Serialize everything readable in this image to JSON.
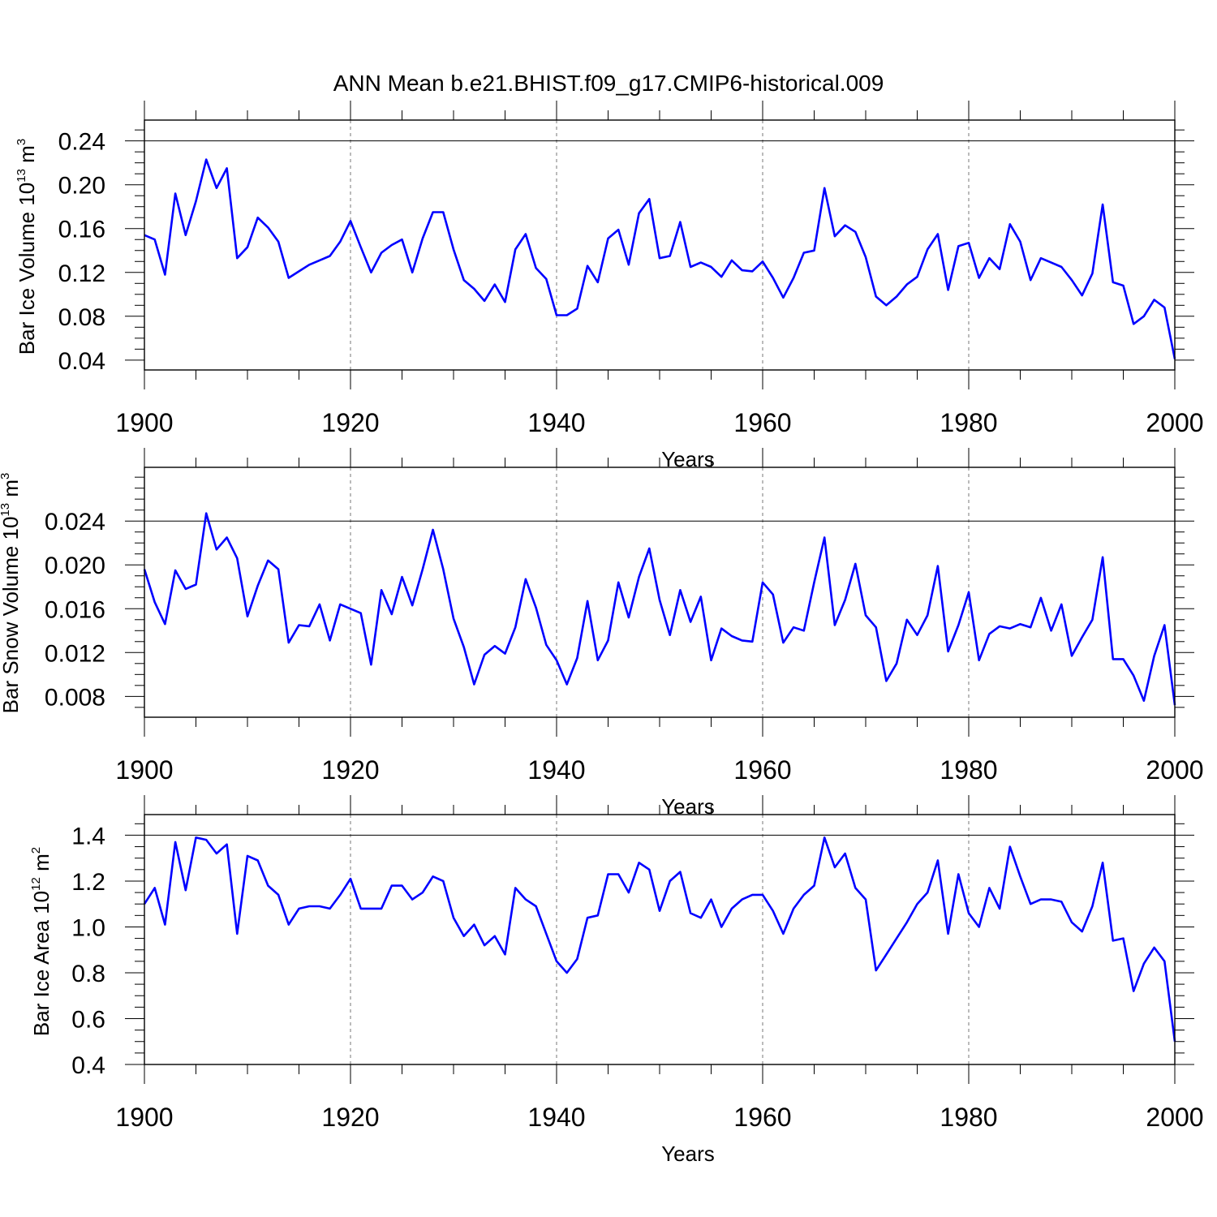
{
  "title": "ANN Mean b.e21.BHIST.f09_g17.CMIP6-historical.009",
  "colors": {
    "series": "#0000ff",
    "axis": "#000000",
    "grid": "#777777"
  },
  "chart_data": [
    {
      "type": "line",
      "title": "",
      "ylabel": "Bar Ice Volume 10",
      "ylabel_exponent": "13",
      "ylabel_unit": "m",
      "ylabel_unit_exponent": "3",
      "xlabel": "Years",
      "xlim": [
        1900,
        2000
      ],
      "ylim": [
        0.031,
        0.259
      ],
      "x_ticks": [
        "1900",
        "1920",
        "1940",
        "1960",
        "1980",
        "2000"
      ],
      "y_ticks": [
        "0.04",
        "0.08",
        "0.12",
        "0.16",
        "0.20",
        "0.24"
      ],
      "grid": "dashed vertical lines at 1920, 1940, 1960, 1980",
      "x_start": 1900,
      "series": [
        {
          "values": [
            0.154,
            0.15,
            0.118,
            0.192,
            0.154,
            0.185,
            0.223,
            0.197,
            0.215,
            0.133,
            0.143,
            0.17,
            0.161,
            0.148,
            0.115,
            0.121,
            0.127,
            0.131,
            0.135,
            0.148,
            0.167,
            0.143,
            0.12,
            0.138,
            0.145,
            0.15,
            0.12,
            0.151,
            0.175,
            0.175,
            0.141,
            0.113,
            0.105,
            0.094,
            0.109,
            0.093,
            0.141,
            0.155,
            0.124,
            0.114,
            0.081,
            0.081,
            0.087,
            0.126,
            0.111,
            0.151,
            0.159,
            0.127,
            0.174,
            0.187,
            0.133,
            0.135,
            0.166,
            0.125,
            0.129,
            0.125,
            0.116,
            0.131,
            0.122,
            0.121,
            0.13,
            0.115,
            0.097,
            0.115,
            0.138,
            0.14,
            0.197,
            0.153,
            0.163,
            0.157,
            0.134,
            0.098,
            0.09,
            0.098,
            0.109,
            0.116,
            0.141,
            0.155,
            0.104,
            0.144,
            0.147,
            0.115,
            0.133,
            0.123,
            0.164,
            0.148,
            0.113,
            0.133,
            0.129,
            0.125,
            0.113,
            0.099,
            0.119,
            0.182,
            0.111,
            0.108,
            0.073,
            0.08,
            0.095,
            0.088,
            0.041
          ]
        }
      ]
    },
    {
      "type": "line",
      "title": "",
      "ylabel": "Bar Snow Volume 10",
      "ylabel_exponent": "13",
      "ylabel_unit": "m",
      "ylabel_unit_exponent": "3",
      "xlabel": "Years",
      "xlim": [
        1900,
        2000
      ],
      "ylim": [
        0.0061,
        0.0289
      ],
      "x_ticks": [
        "1900",
        "1920",
        "1940",
        "1960",
        "1980",
        "2000"
      ],
      "y_ticks": [
        "0.008",
        "0.012",
        "0.016",
        "0.020",
        "0.024"
      ],
      "grid": "dashed vertical lines at 1920, 1940, 1960, 1980",
      "x_start": 1900,
      "series": [
        {
          "values": [
            0.0196,
            0.0166,
            0.0146,
            0.0195,
            0.0178,
            0.0182,
            0.0247,
            0.0214,
            0.0225,
            0.0206,
            0.0153,
            0.0181,
            0.0204,
            0.0196,
            0.0129,
            0.0145,
            0.0144,
            0.0164,
            0.0131,
            0.0164,
            0.016,
            0.0156,
            0.0109,
            0.0177,
            0.0155,
            0.0189,
            0.0163,
            0.0196,
            0.0232,
            0.0196,
            0.0151,
            0.0125,
            0.0091,
            0.0118,
            0.0126,
            0.0119,
            0.0143,
            0.0187,
            0.0161,
            0.0127,
            0.0113,
            0.0091,
            0.0115,
            0.0167,
            0.0113,
            0.0131,
            0.0184,
            0.0152,
            0.0189,
            0.0215,
            0.0168,
            0.0136,
            0.0177,
            0.0148,
            0.0171,
            0.0113,
            0.0142,
            0.0135,
            0.0131,
            0.013,
            0.0184,
            0.0173,
            0.0129,
            0.0143,
            0.014,
            0.0184,
            0.0225,
            0.0145,
            0.0168,
            0.0201,
            0.0154,
            0.0143,
            0.0094,
            0.011,
            0.015,
            0.0136,
            0.0154,
            0.0199,
            0.0121,
            0.0145,
            0.0175,
            0.0113,
            0.0137,
            0.0144,
            0.0142,
            0.0146,
            0.0143,
            0.017,
            0.014,
            0.0164,
            0.0117,
            0.0134,
            0.015,
            0.0207,
            0.0114,
            0.0114,
            0.0099,
            0.0076,
            0.0117,
            0.0145,
            0.0072
          ]
        }
      ]
    },
    {
      "type": "line",
      "title": "",
      "ylabel": "Bar Ice Area 10",
      "ylabel_exponent": "12",
      "ylabel_unit": "m",
      "ylabel_unit_exponent": "2",
      "xlabel": "Years",
      "xlim": [
        1900,
        2000
      ],
      "ylim": [
        0.4,
        1.49
      ],
      "x_ticks": [
        "1900",
        "1920",
        "1940",
        "1960",
        "1980",
        "2000"
      ],
      "y_ticks": [
        "0.4",
        "0.6",
        "0.8",
        "1.0",
        "1.2",
        "1.4"
      ],
      "grid": "dashed vertical lines at 1920, 1940, 1960, 1980",
      "x_start": 1900,
      "series": [
        {
          "values": [
            1.1,
            1.17,
            1.01,
            1.37,
            1.16,
            1.39,
            1.38,
            1.32,
            1.36,
            0.97,
            1.31,
            1.29,
            1.18,
            1.14,
            1.01,
            1.08,
            1.09,
            1.09,
            1.08,
            1.14,
            1.21,
            1.08,
            1.08,
            1.08,
            1.18,
            1.18,
            1.12,
            1.15,
            1.22,
            1.2,
            1.04,
            0.96,
            1.01,
            0.92,
            0.96,
            0.88,
            1.17,
            1.12,
            1.09,
            0.97,
            0.85,
            0.8,
            0.86,
            1.04,
            1.05,
            1.23,
            1.23,
            1.15,
            1.28,
            1.25,
            1.07,
            1.2,
            1.24,
            1.06,
            1.04,
            1.12,
            1.0,
            1.08,
            1.12,
            1.14,
            1.14,
            1.07,
            0.97,
            1.08,
            1.14,
            1.18,
            1.39,
            1.26,
            1.32,
            1.17,
            1.12,
            0.81,
            0.88,
            0.95,
            1.02,
            1.1,
            1.15,
            1.29,
            0.97,
            1.23,
            1.06,
            1.0,
            1.17,
            1.08,
            1.35,
            1.22,
            1.1,
            1.12,
            1.12,
            1.11,
            1.02,
            0.98,
            1.09,
            1.28,
            0.94,
            0.95,
            0.72,
            0.84,
            0.91,
            0.85,
            0.5
          ]
        }
      ]
    }
  ]
}
